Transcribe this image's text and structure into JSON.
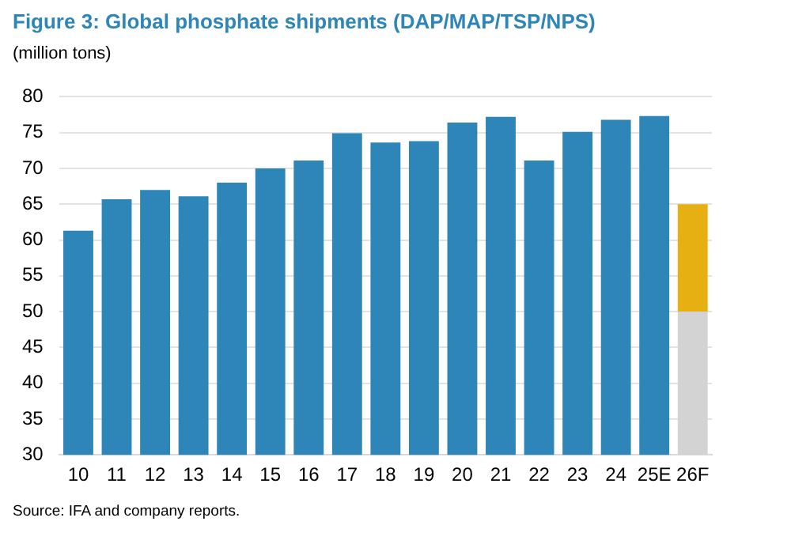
{
  "chart_data": {
    "type": "bar",
    "title": "Figure 3: Global phosphate shipments (DAP/MAP/TSP/NPS)",
    "ylabel": "(million tons)",
    "categories": [
      "10",
      "11",
      "12",
      "13",
      "14",
      "15",
      "16",
      "17",
      "18",
      "19",
      "20",
      "21",
      "22",
      "23",
      "24",
      "25E",
      "26F"
    ],
    "series": [
      {
        "color": "#2e86b8",
        "values": [
          61.3,
          65.7,
          67.0,
          66.1,
          68.0,
          70.0,
          71.1,
          74.9,
          73.6,
          73.8,
          76.4,
          77.2,
          71.1,
          75.1,
          76.8,
          77.3,
          null
        ]
      },
      {
        "color": "#d3d3d3",
        "values": [
          null,
          null,
          null,
          null,
          null,
          null,
          null,
          null,
          null,
          null,
          null,
          null,
          null,
          null,
          null,
          null,
          50
        ]
      },
      {
        "color": "#e6b012",
        "base": [
          null,
          null,
          null,
          null,
          null,
          null,
          null,
          null,
          null,
          null,
          null,
          null,
          null,
          null,
          null,
          null,
          50
        ],
        "values": [
          null,
          null,
          null,
          null,
          null,
          null,
          null,
          null,
          null,
          null,
          null,
          null,
          null,
          null,
          null,
          null,
          15
        ]
      }
    ],
    "ylim": [
      30,
      80
    ],
    "yticks": [
      30,
      35,
      40,
      45,
      50,
      55,
      60,
      65,
      70,
      75,
      80
    ],
    "grid": "y",
    "annotations": [
      "Source: IFA and company reports."
    ]
  }
}
